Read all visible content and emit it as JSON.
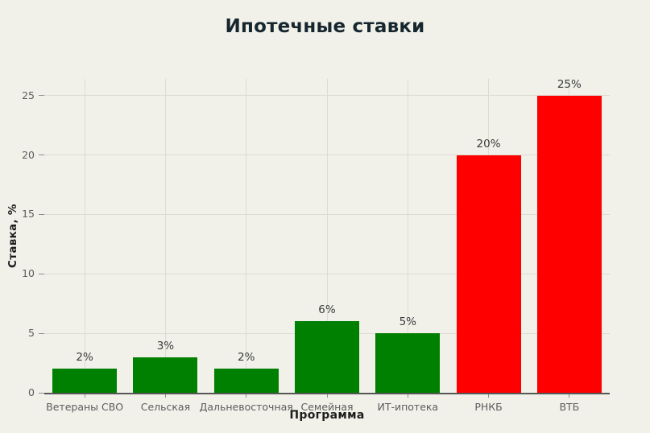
{
  "chart_data": {
    "type": "bar",
    "title": "Ипотечные ставки",
    "xlabel": "Программа",
    "ylabel": "Ставка, %",
    "categories": [
      "Ветераны СВО",
      "Сельская",
      "Дальневосточная",
      "Семейная",
      "ИТ-ипотека",
      "РНКБ",
      "ВТБ"
    ],
    "values": [
      2,
      3,
      2,
      6,
      5,
      20,
      25
    ],
    "data_labels": [
      "2%",
      "3%",
      "2%",
      "6%",
      "5%",
      "20%",
      "25%"
    ],
    "bar_colors": [
      "#008000",
      "#008000",
      "#008000",
      "#008000",
      "#008000",
      "#ff0000",
      "#ff0000"
    ],
    "yticks": [
      0,
      5,
      10,
      15,
      20,
      25
    ],
    "ylim": [
      0,
      26.4
    ],
    "grid": "both",
    "legend": false
  },
  "colors": {
    "background": "#f1f1ea",
    "green_bar": "#008000",
    "red_bar": "#ff0000",
    "title_text": "#16262e",
    "axis_title_text": "#1d1d1d",
    "tick_text": "#5c5c5c",
    "data_label_text": "#3a3a3a",
    "gridline": "#dcdcd4",
    "axis_line": "#565656"
  }
}
